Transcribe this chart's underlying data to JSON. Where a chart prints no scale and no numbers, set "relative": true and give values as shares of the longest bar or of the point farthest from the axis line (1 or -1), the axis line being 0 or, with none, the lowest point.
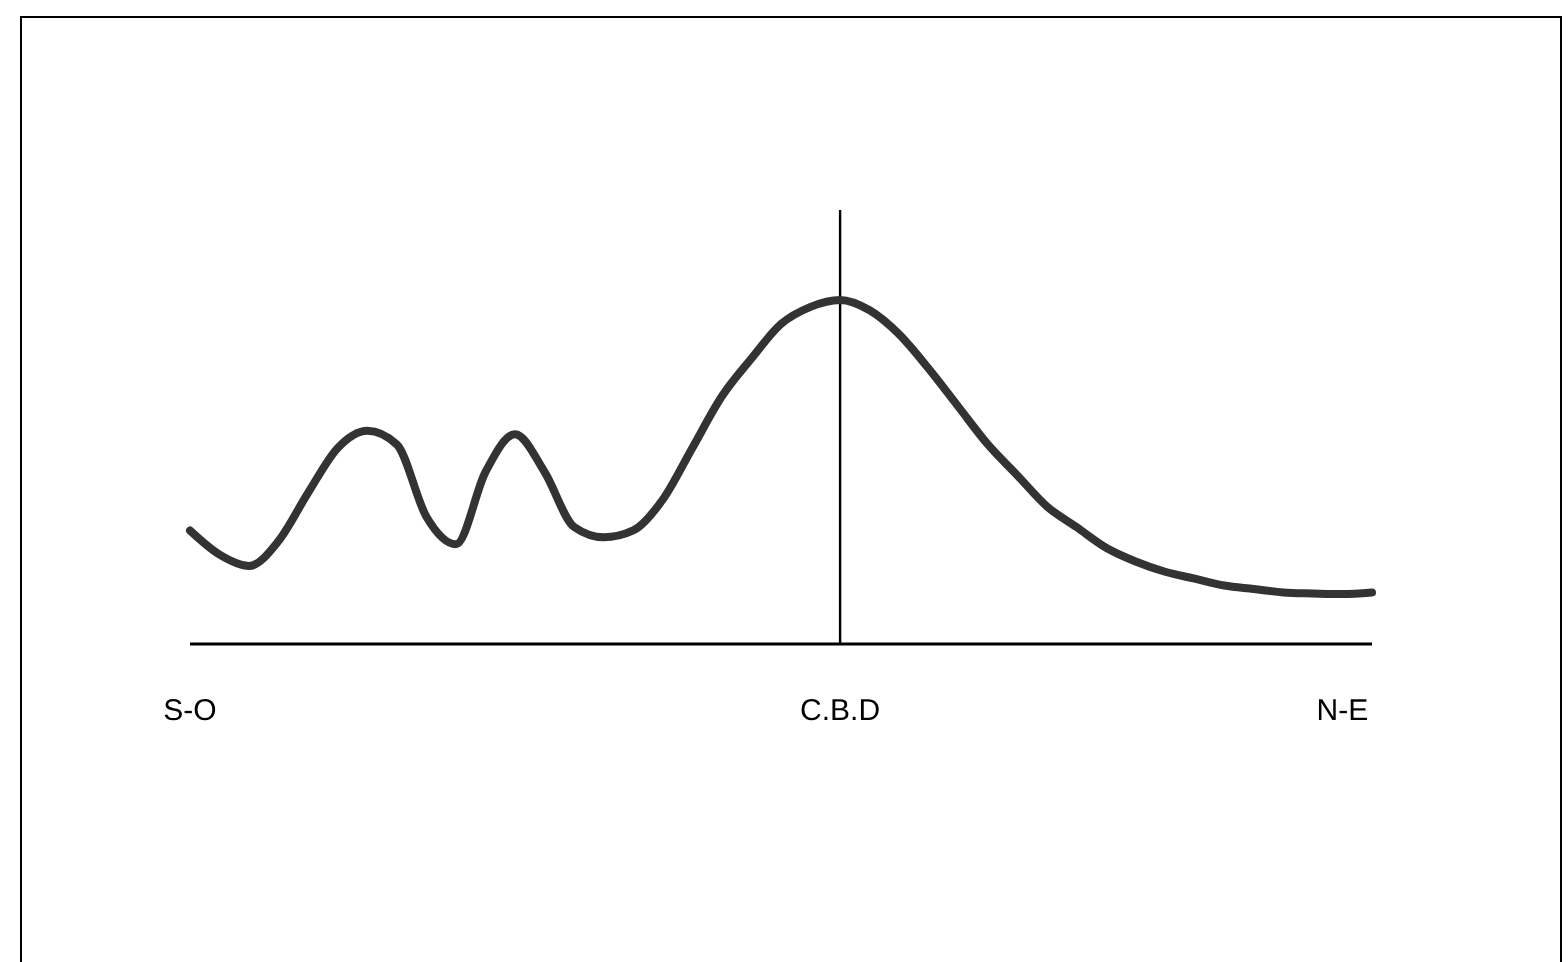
{
  "chart_data": {
    "type": "line",
    "relative": true,
    "categories": [
      "S-O",
      null,
      null,
      null,
      null,
      null,
      null,
      null,
      null,
      null,
      null,
      null,
      null,
      null,
      null,
      null,
      null,
      null,
      null,
      null,
      null,
      null,
      "C.B.D",
      null,
      null,
      null,
      null,
      null,
      null,
      null,
      null,
      null,
      null,
      null,
      null,
      null,
      null,
      null,
      null,
      "N-E",
      null
    ],
    "tick_labels": "x",
    "marker": "none",
    "line_style": "solid",
    "ref_lines": [
      {
        "axis": "x",
        "value": "C.B.D",
        "color": "#000000"
      }
    ],
    "series": [
      {
        "color": "#333333",
        "values": [
          0.33,
          0.26,
          0.227,
          0.3,
          0.44,
          0.57,
          0.62,
          0.58,
          0.37,
          0.29,
          0.5,
          0.61,
          0.5,
          0.34,
          0.31,
          0.33,
          0.42,
          0.57,
          0.72,
          0.83,
          0.93,
          0.98,
          1,
          0.97,
          0.9,
          0.8,
          0.69,
          0.58,
          0.49,
          0.4,
          0.34,
          0.28,
          0.24,
          0.21,
          0.19,
          0.17,
          0.16,
          0.15,
          0.147,
          0.145,
          0.15
        ]
      }
    ]
  }
}
